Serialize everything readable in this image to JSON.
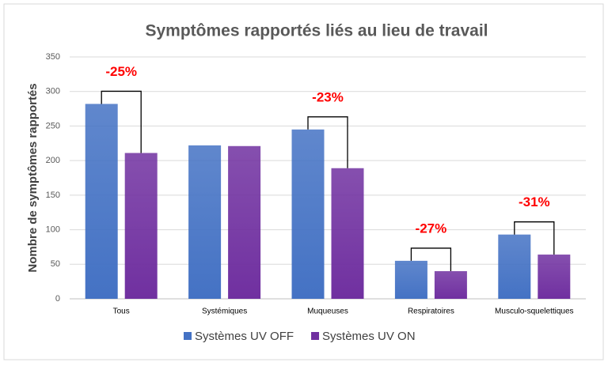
{
  "chart_data": {
    "type": "bar",
    "title": "Symptômes rapportés liés au lieu de travail",
    "y_label": "Nombre de symptômes rapportés",
    "categories": [
      "Tous",
      "Systémiques",
      "Muqueuses",
      "Respiratoires",
      "Musculo-squelettiques"
    ],
    "series": [
      {
        "name": "Systèmes UV OFF",
        "color": "#4472c4",
        "values": [
          282,
          222,
          245,
          55,
          93
        ]
      },
      {
        "name": "Systèmes UV ON",
        "color": "#7030a0",
        "values": [
          211,
          221,
          189,
          40,
          64
        ]
      }
    ],
    "ylim": [
      0,
      350
    ],
    "yticks": [
      0,
      50,
      100,
      150,
      200,
      250,
      300,
      350
    ],
    "grid": true,
    "legend": "bottom",
    "annotations": [
      {
        "text": "-25%",
        "category": "Tous"
      },
      {
        "text": "-23%",
        "category": "Muqueuses"
      },
      {
        "text": "-27%",
        "category": "Respiratoires"
      },
      {
        "text": "-31%",
        "category": "Musculo-squelettiques"
      }
    ]
  }
}
